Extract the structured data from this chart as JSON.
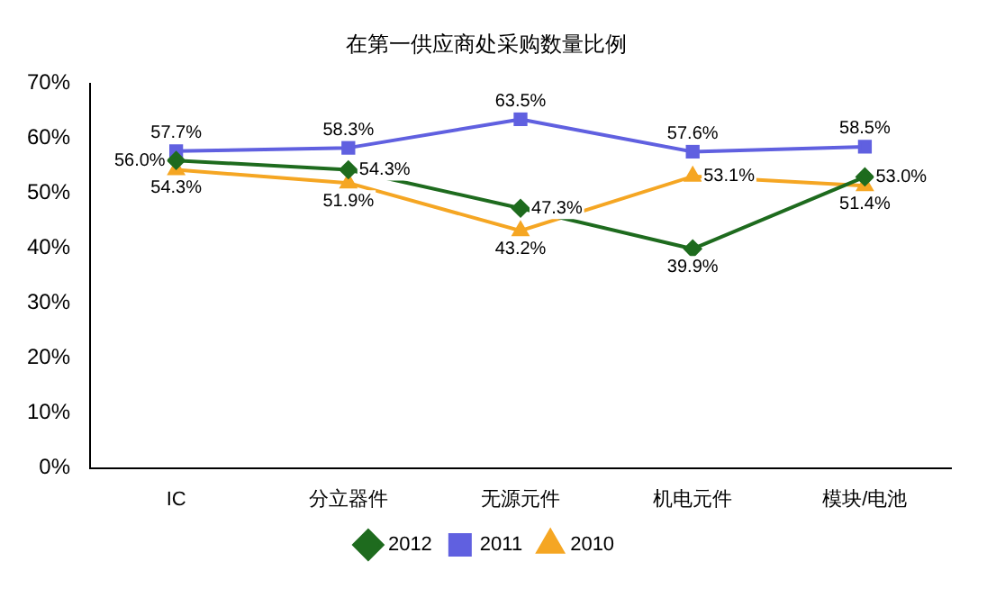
{
  "chart_data": {
    "type": "line",
    "title": "在第一供应商处采购数量比例",
    "categories": [
      "IC",
      "分立器件",
      "无源元件",
      "机电元件",
      "模块/电池"
    ],
    "series": [
      {
        "name": "2012",
        "color": "#1e6b1e",
        "marker": "diamond",
        "values": [
          56.0,
          54.3,
          47.3,
          39.9,
          53.0
        ],
        "value_labels": [
          "56.0%",
          "54.3%",
          "47.3%",
          "39.9%",
          "53.0%"
        ]
      },
      {
        "name": "2011",
        "color": "#6060e0",
        "marker": "square",
        "values": [
          57.7,
          58.3,
          63.5,
          57.6,
          58.5
        ],
        "value_labels": [
          "57.7%",
          "58.3%",
          "63.5%",
          "57.6%",
          "58.5%"
        ]
      },
      {
        "name": "2010",
        "color": "#f5a623",
        "marker": "triangle",
        "values": [
          54.3,
          51.9,
          43.2,
          53.1,
          51.4
        ],
        "value_labels": [
          "54.3%",
          "51.9%",
          "43.2%",
          "53.1%",
          "51.4%"
        ]
      }
    ],
    "ylim": [
      0,
      70
    ],
    "yticks": [
      {
        "value": 0,
        "label": "0%"
      },
      {
        "value": 10,
        "label": "10%"
      },
      {
        "value": 20,
        "label": "20%"
      },
      {
        "value": 30,
        "label": "30%"
      },
      {
        "value": 40,
        "label": "40%"
      },
      {
        "value": 50,
        "label": "50%"
      },
      {
        "value": 60,
        "label": "60%"
      },
      {
        "value": 70,
        "label": "70%"
      }
    ],
    "grid": false,
    "legend": "bottom",
    "line_style": "solid"
  }
}
